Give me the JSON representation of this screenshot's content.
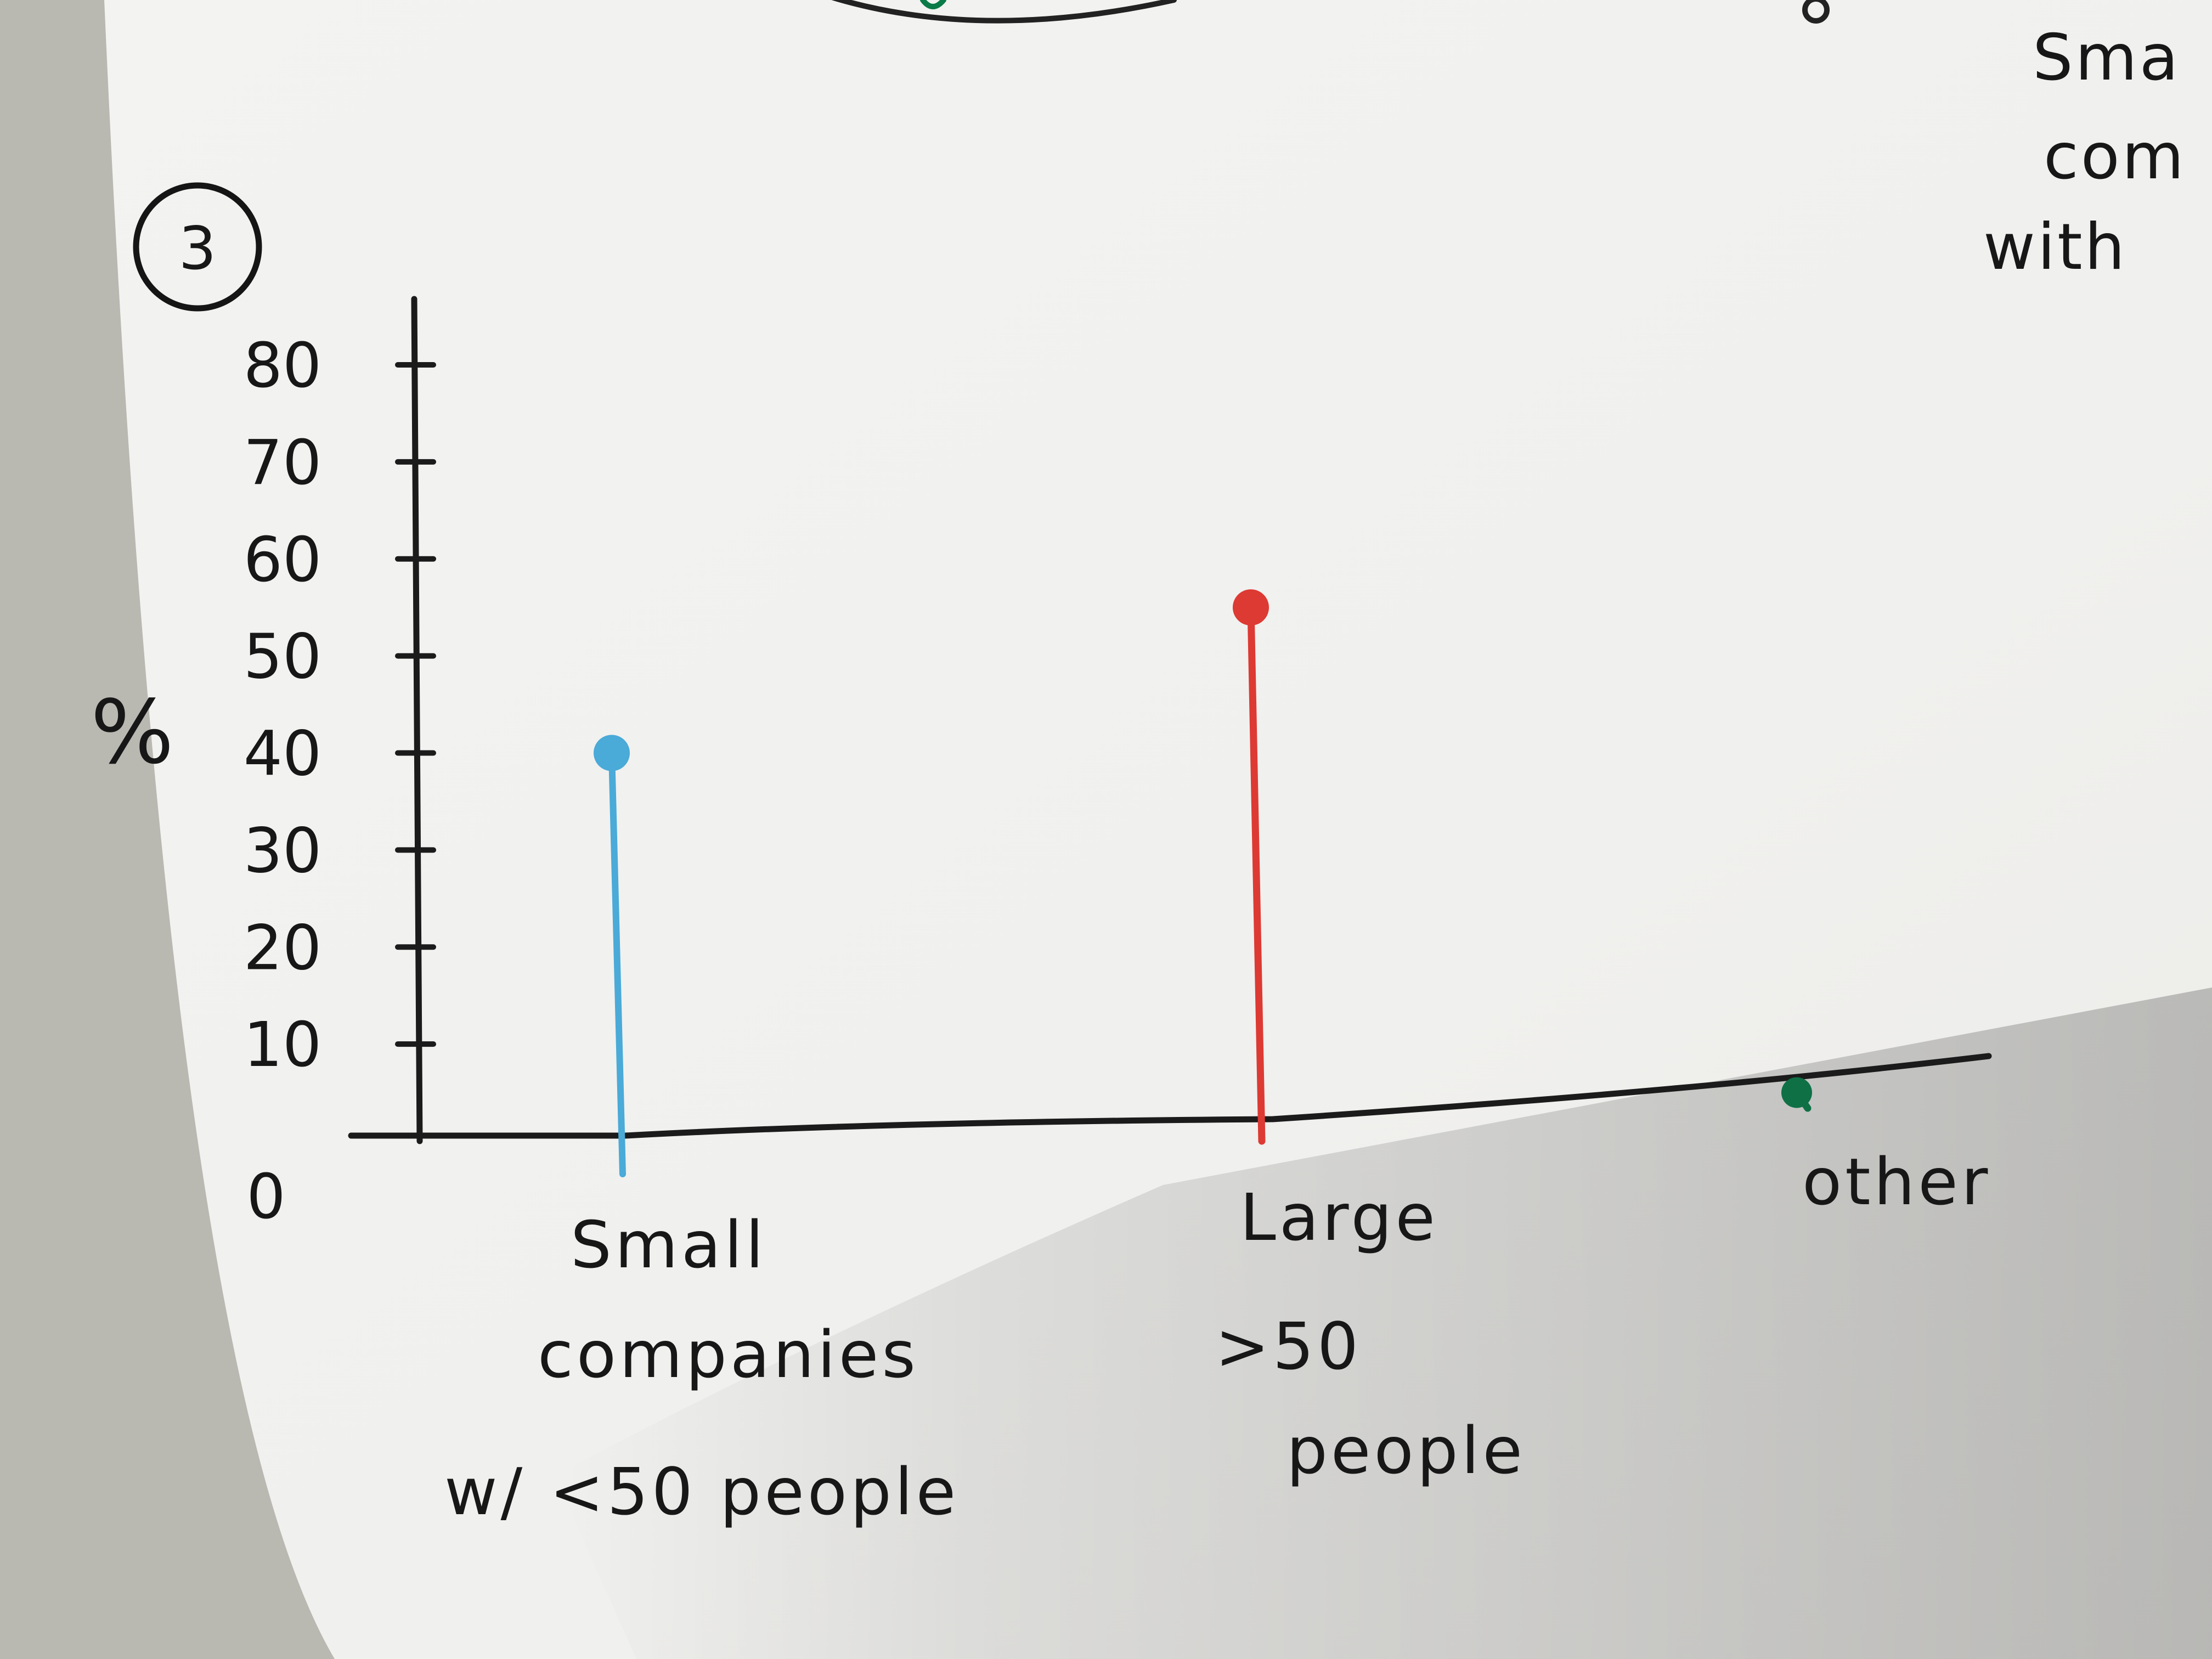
{
  "sheet": {
    "question_marker": "3",
    "side_note": [
      "Sma",
      "com",
      "with"
    ]
  },
  "chart_data": {
    "type": "lollipop",
    "ylabel": "%",
    "ylim": [
      0,
      80
    ],
    "yticks": [
      "0",
      "10",
      "20",
      "30",
      "40",
      "50",
      "60",
      "70",
      "80"
    ],
    "categories": [
      {
        "name": "Small companies w/ <50 people",
        "lines": [
          "Small",
          "companies",
          "w/ <50 people"
        ],
        "value": 40,
        "color": "#4aaad8"
      },
      {
        "name": "Large >50 people",
        "lines": [
          "Large",
          ">50",
          "people"
        ],
        "value": 55,
        "color": "#dd3a33"
      },
      {
        "name": "other",
        "lines": [
          "other"
        ],
        "value": 5,
        "color": "#0f7046"
      }
    ]
  }
}
